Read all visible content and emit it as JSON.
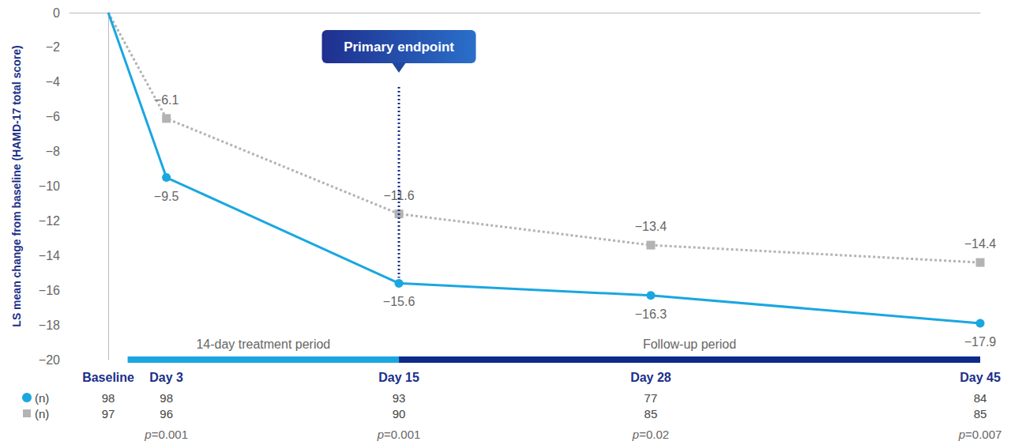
{
  "chart_data": {
    "type": "line",
    "y_label": "LS mean change from baseline (HAMD-17 total score)",
    "x": [
      0,
      3,
      15,
      28,
      45
    ],
    "xlim": [
      -2,
      45
    ],
    "xticks": [
      {
        "value": 0,
        "label": "Baseline"
      },
      {
        "value": 3,
        "label": "Day 3"
      },
      {
        "value": 15,
        "label": "Day 15"
      },
      {
        "value": 28,
        "label": "Day 28"
      },
      {
        "value": 45,
        "label": "Day 45"
      }
    ],
    "ylim": [
      -20,
      0
    ],
    "yticks": [
      {
        "value": -20,
        "label": "−20"
      },
      {
        "value": -18,
        "label": "−18"
      },
      {
        "value": -16,
        "label": "−16"
      },
      {
        "value": -14,
        "label": "−14"
      },
      {
        "value": -12,
        "label": "−12"
      },
      {
        "value": -10,
        "label": "−10"
      },
      {
        "value": -8,
        "label": "−8"
      },
      {
        "value": -6,
        "label": "−6"
      },
      {
        "value": -4,
        "label": "−4"
      },
      {
        "value": -2,
        "label": "−2"
      },
      0
    ],
    "grid": false,
    "data_labels": true,
    "series": [
      {
        "color": "#1aa7e0",
        "marker": "circle",
        "line_style": "solid",
        "values": [
          0,
          -9.5,
          -15.6,
          -16.3,
          -17.9
        ],
        "value_labels": [
          null,
          "−9.5",
          "−15.6",
          "−16.3",
          "−17.9"
        ],
        "n": [
          98,
          98,
          93,
          77,
          84
        ]
      },
      {
        "color": "#b3b3b3",
        "marker": "square",
        "line_style": "dotted",
        "values": [
          0,
          -6.1,
          -11.6,
          -13.4,
          -14.4
        ],
        "value_labels": [
          null,
          "−6.1",
          "−11.6",
          "−13.4",
          "−14.4"
        ],
        "n": [
          97,
          96,
          90,
          85,
          85
        ]
      }
    ],
    "n_label": "(n)",
    "p_values": [
      null,
      "p=0.001",
      "p=0.001",
      "p=0.02",
      "p=0.007"
    ],
    "annotations": [
      {
        "label": "Primary endpoint",
        "x": 15
      }
    ],
    "periods": [
      {
        "label": "14-day treatment period",
        "start": 1,
        "end": 15,
        "color": "#1aa7e0"
      },
      {
        "label": "Follow-up period",
        "start": 15,
        "end": 45,
        "color": "#0d2a8a"
      }
    ]
  }
}
